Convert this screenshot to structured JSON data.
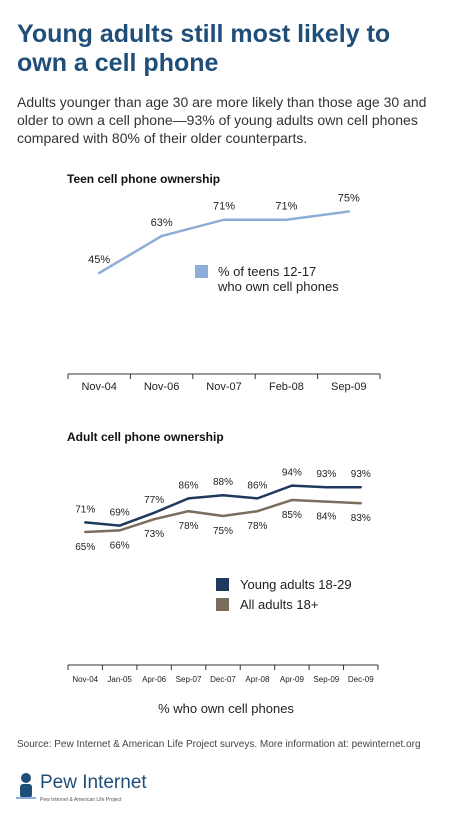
{
  "headline": "Young adults still most likely to own a cell phone",
  "intro": "Adults younger than age 30 are more likely than those age 30 and older to own a cell phone—93% of young adults own cell phones compared with 80% of their older counterparts.",
  "source": "Source: Pew Internet & American Life Project surveys. More information at: pewinternet.org",
  "logo": {
    "name": "Pew Internet",
    "tagline": "Pew Internet & American Life Project"
  },
  "colors": {
    "headline": "#1f4e79",
    "teen": "#8eaed8",
    "young": "#1e3a5f",
    "all": "#7a6d5d",
    "axis": "#333333"
  },
  "chart_data": [
    {
      "type": "line",
      "title": "Teen cell phone ownership",
      "categories": [
        "Nov-04",
        "Nov-06",
        "Nov-07",
        "Feb-08",
        "Sep-09"
      ],
      "series": [
        {
          "name": "% of teens 12-17 who own cell phones",
          "values": [
            45,
            63,
            71,
            71,
            75
          ],
          "labels": [
            "45%",
            "63%",
            "71%",
            "71%",
            "75%"
          ]
        }
      ],
      "legend": "center-right",
      "grid": false
    },
    {
      "type": "line",
      "title": "Adult cell phone ownership",
      "xlabel": "% who own cell phones",
      "categories": [
        "Nov-04",
        "Jan-05",
        "Apr-06",
        "Sep-07",
        "Dec-07",
        "Apr-08",
        "Apr-09",
        "Sep-09",
        "Dec-09"
      ],
      "series": [
        {
          "name": "Young adults 18-29",
          "values": [
            71,
            69,
            77,
            86,
            88,
            86,
            94,
            93,
            93
          ],
          "labels": [
            "71%",
            "69%",
            "77%",
            "86%",
            "88%",
            "86%",
            "94%",
            "93%",
            "93%"
          ]
        },
        {
          "name": "All adults 18+",
          "values": [
            65,
            66,
            73,
            78,
            75,
            78,
            85,
            84,
            83
          ],
          "labels": [
            "65%",
            "66%",
            "73%",
            "78%",
            "75%",
            "78%",
            "85%",
            "84%",
            "83%"
          ]
        }
      ],
      "legend": "center-right",
      "grid": false
    }
  ]
}
